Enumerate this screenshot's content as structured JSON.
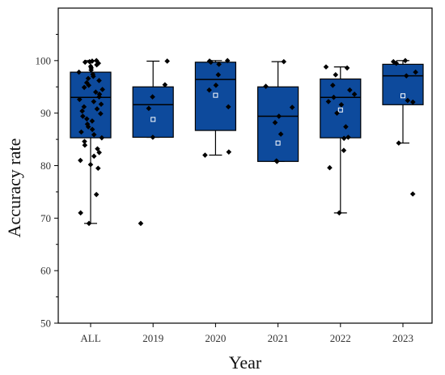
{
  "chart_data": {
    "type": "box",
    "xlabel": "Year",
    "ylabel": "Accuracy rate",
    "ylim": [
      50,
      110
    ],
    "yticks": [
      50,
      60,
      70,
      80,
      90,
      100
    ],
    "grid": false,
    "colors": {
      "box_fill": "#0d4a9c",
      "box_edge": "#000000",
      "point": "#000000",
      "mean_marker": "#ffffff"
    },
    "categories": [
      "ALL",
      "2019",
      "2020",
      "2021",
      "2022",
      "2023"
    ],
    "boxes": [
      {
        "category": "ALL",
        "whisker_low": 69.0,
        "q1": 85.3,
        "median": 93.0,
        "q3": 97.8,
        "whisker_high": 100.0,
        "mean": null
      },
      {
        "category": "2019",
        "whisker_low": 85.4,
        "q1": 85.4,
        "median": 91.6,
        "q3": 95.0,
        "whisker_high": 99.9,
        "mean": 88.8
      },
      {
        "category": "2020",
        "whisker_low": 82.0,
        "q1": 86.7,
        "median": 96.4,
        "q3": 99.7,
        "whisker_high": 100.0,
        "mean": 93.4
      },
      {
        "category": "2021",
        "whisker_low": 80.8,
        "q1": 80.8,
        "median": 89.4,
        "q3": 95.0,
        "whisker_high": 99.8,
        "mean": 84.3
      },
      {
        "category": "2022",
        "whisker_low": 71.0,
        "q1": 85.3,
        "median": 93.0,
        "q3": 96.5,
        "whisker_high": 98.8,
        "mean": 90.6
      },
      {
        "category": "2023",
        "whisker_low": 84.3,
        "q1": 91.6,
        "median": 97.1,
        "q3": 99.3,
        "whisker_high": 100.0,
        "mean": 93.3
      }
    ],
    "points": [
      {
        "category": "ALL",
        "values": [
          100,
          99.9,
          99.8,
          99.7,
          99.5,
          99.2,
          98.9,
          98.6,
          98.2,
          97.8,
          97.4,
          97.0,
          96.6,
          96.2,
          95.8,
          95.3,
          94.9,
          94.5,
          94.0,
          93.6,
          93.1,
          92.6,
          92.2,
          91.7,
          91.2,
          90.8,
          90.4,
          89.9,
          89.4,
          88.9,
          88.5,
          87.9,
          87.4,
          86.9,
          86.4,
          85.9,
          85.3,
          84.6,
          83.9,
          83.2,
          82.5,
          81.8,
          81.0,
          80.2,
          79.5,
          74.5,
          71.0,
          69.0
        ]
      },
      {
        "category": "2019",
        "values": [
          99.9,
          95.4,
          93.1,
          90.9,
          85.4,
          69.0
        ]
      },
      {
        "category": "2020",
        "values": [
          100,
          99.9,
          99.7,
          99.3,
          97.3,
          95.3,
          94.4,
          91.2,
          82.6,
          82.0
        ]
      },
      {
        "category": "2021",
        "values": [
          99.8,
          95.1,
          91.1,
          89.4,
          88.2,
          86.0,
          80.9,
          80.8
        ]
      },
      {
        "category": "2022",
        "values": [
          98.8,
          98.6,
          97.3,
          95.3,
          94.4,
          93.6,
          93.0,
          92.2,
          91.6,
          90.0,
          87.4,
          85.4,
          85.2,
          82.9,
          79.6,
          71.0
        ]
      },
      {
        "category": "2023",
        "values": [
          100,
          99.8,
          99.5,
          97.8,
          97.1,
          92.4,
          92.1,
          84.3,
          74.6
        ]
      }
    ]
  }
}
